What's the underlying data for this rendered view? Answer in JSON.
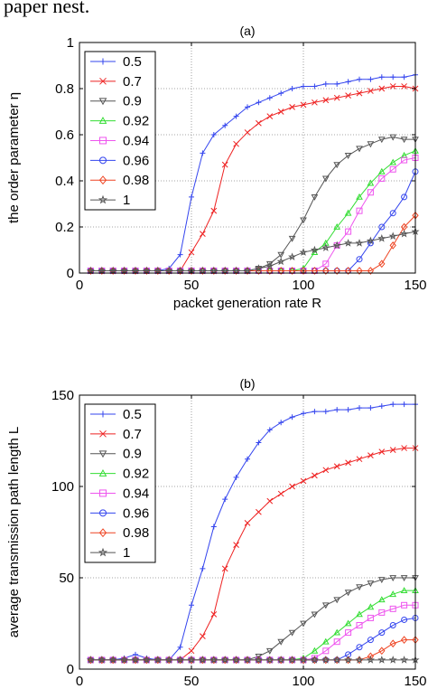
{
  "caption_fragment": "paper nest.",
  "chart_data": [
    {
      "type": "line",
      "panel_label": "(a)",
      "xlabel": "packet generation rate R",
      "ylabel": "the order parameter η",
      "xlim": [
        0,
        150
      ],
      "ylim": [
        0,
        1
      ],
      "xticks": [
        0,
        50,
        100,
        150
      ],
      "yticks": [
        0,
        0.2,
        0.4,
        0.6,
        0.8,
        1
      ],
      "ytick_labels": [
        "0",
        "0.2",
        "0.4",
        "0.6",
        "0.8",
        "1"
      ],
      "grid": true,
      "legend_position": "top-left",
      "x": [
        5,
        10,
        15,
        20,
        25,
        30,
        35,
        40,
        45,
        50,
        55,
        60,
        65,
        70,
        75,
        80,
        85,
        90,
        95,
        100,
        105,
        110,
        115,
        120,
        125,
        130,
        135,
        140,
        145,
        150
      ],
      "series": [
        {
          "name": "0.5",
          "color": "#3344ee",
          "marker": "+",
          "values": [
            0.01,
            0.01,
            0.01,
            0.01,
            0.01,
            0.01,
            0.01,
            0.02,
            0.08,
            0.33,
            0.52,
            0.6,
            0.64,
            0.68,
            0.72,
            0.74,
            0.76,
            0.78,
            0.8,
            0.81,
            0.81,
            0.82,
            0.82,
            0.83,
            0.84,
            0.84,
            0.85,
            0.85,
            0.85,
            0.86
          ]
        },
        {
          "name": "0.7",
          "color": "#ee2222",
          "marker": "x",
          "values": [
            0.01,
            0.01,
            0.01,
            0.01,
            0.01,
            0.01,
            0.01,
            0.01,
            0.01,
            0.09,
            0.17,
            0.27,
            0.47,
            0.56,
            0.61,
            0.65,
            0.68,
            0.7,
            0.72,
            0.73,
            0.74,
            0.75,
            0.76,
            0.77,
            0.78,
            0.79,
            0.8,
            0.81,
            0.81,
            0.8
          ]
        },
        {
          "name": "0.9",
          "color": "#555555",
          "marker": "triangle-down",
          "values": [
            0.01,
            0.01,
            0.01,
            0.01,
            0.01,
            0.01,
            0.01,
            0.01,
            0.01,
            0.01,
            0.01,
            0.01,
            0.01,
            0.01,
            0.01,
            0.02,
            0.04,
            0.08,
            0.15,
            0.23,
            0.33,
            0.41,
            0.47,
            0.51,
            0.54,
            0.56,
            0.58,
            0.59,
            0.58,
            0.58
          ]
        },
        {
          "name": "0.92",
          "color": "#33dd33",
          "marker": "triangle-up",
          "values": [
            0.01,
            0.01,
            0.01,
            0.01,
            0.01,
            0.01,
            0.01,
            0.01,
            0.01,
            0.01,
            0.01,
            0.01,
            0.01,
            0.01,
            0.01,
            0.01,
            0.01,
            0.01,
            0.01,
            0.02,
            0.09,
            0.13,
            0.2,
            0.26,
            0.33,
            0.39,
            0.44,
            0.48,
            0.51,
            0.53
          ]
        },
        {
          "name": "0.94",
          "color": "#ee55ee",
          "marker": "square",
          "values": [
            0.01,
            0.01,
            0.01,
            0.01,
            0.01,
            0.01,
            0.01,
            0.01,
            0.01,
            0.01,
            0.01,
            0.01,
            0.01,
            0.01,
            0.01,
            0.01,
            0.01,
            0.01,
            0.01,
            0.01,
            0.01,
            0.04,
            0.12,
            0.18,
            0.27,
            0.35,
            0.41,
            0.45,
            0.49,
            0.5
          ]
        },
        {
          "name": "0.96",
          "color": "#3344ee",
          "marker": "circle",
          "values": [
            0.01,
            0.01,
            0.01,
            0.01,
            0.01,
            0.01,
            0.01,
            0.01,
            0.01,
            0.01,
            0.01,
            0.01,
            0.01,
            0.01,
            0.01,
            0.01,
            0.01,
            0.01,
            0.01,
            0.01,
            0.01,
            0.01,
            0.01,
            0.01,
            0.06,
            0.13,
            0.2,
            0.26,
            0.33,
            0.44
          ]
        },
        {
          "name": "0.98",
          "color": "#ee4422",
          "marker": "diamond",
          "values": [
            0.01,
            0.01,
            0.01,
            0.01,
            0.01,
            0.01,
            0.01,
            0.01,
            0.01,
            0.01,
            0.01,
            0.01,
            0.01,
            0.01,
            0.01,
            0.01,
            0.01,
            0.01,
            0.01,
            0.01,
            0.01,
            0.01,
            0.01,
            0.01,
            0.01,
            0.01,
            0.04,
            0.12,
            0.2,
            0.25
          ]
        },
        {
          "name": "1",
          "color": "#555555",
          "marker": "star",
          "values": [
            0.01,
            0.01,
            0.01,
            0.01,
            0.01,
            0.01,
            0.01,
            0.01,
            0.01,
            0.01,
            0.01,
            0.01,
            0.01,
            0.01,
            0.01,
            0.02,
            0.03,
            0.05,
            0.07,
            0.09,
            0.1,
            0.11,
            0.12,
            0.13,
            0.13,
            0.14,
            0.15,
            0.16,
            0.17,
            0.18
          ]
        }
      ]
    },
    {
      "type": "line",
      "panel_label": "(b)",
      "xlabel": "packet generation rate R",
      "ylabel": "average transmission path length L",
      "xlim": [
        0,
        150
      ],
      "ylim": [
        0,
        150
      ],
      "xticks": [
        0,
        50,
        100,
        150
      ],
      "yticks": [
        0,
        50,
        100,
        150
      ],
      "ytick_labels": [
        "0",
        "50",
        "100",
        "150"
      ],
      "grid": true,
      "legend_position": "top-left",
      "x": [
        5,
        10,
        15,
        20,
        25,
        30,
        35,
        40,
        45,
        50,
        55,
        60,
        65,
        70,
        75,
        80,
        85,
        90,
        95,
        100,
        105,
        110,
        115,
        120,
        125,
        130,
        135,
        140,
        145,
        150
      ],
      "series": [
        {
          "name": "0.5",
          "color": "#3344ee",
          "marker": "+",
          "values": [
            5,
            5,
            5,
            6,
            8,
            6,
            5,
            5,
            12,
            35,
            55,
            78,
            93,
            105,
            115,
            124,
            131,
            135,
            138,
            140,
            141,
            141,
            142,
            142,
            143,
            143,
            144,
            145,
            145,
            145
          ]
        },
        {
          "name": "0.7",
          "color": "#ee2222",
          "marker": "x",
          "values": [
            5,
            5,
            5,
            5,
            5,
            5,
            5,
            5,
            5,
            10,
            18,
            30,
            55,
            68,
            80,
            86,
            92,
            96,
            100,
            103,
            106,
            109,
            111,
            113,
            115,
            117,
            119,
            120,
            121,
            121
          ]
        },
        {
          "name": "0.9",
          "color": "#555555",
          "marker": "triangle-down",
          "values": [
            5,
            5,
            5,
            5,
            5,
            5,
            5,
            5,
            5,
            5,
            5,
            5,
            5,
            5,
            5,
            7,
            10,
            15,
            20,
            25,
            30,
            35,
            38,
            42,
            45,
            47,
            49,
            50,
            50,
            50
          ]
        },
        {
          "name": "0.92",
          "color": "#33dd33",
          "marker": "triangle-up",
          "values": [
            5,
            5,
            5,
            5,
            5,
            5,
            5,
            5,
            5,
            5,
            5,
            5,
            5,
            5,
            5,
            5,
            5,
            5,
            5,
            6,
            10,
            15,
            20,
            25,
            30,
            34,
            38,
            41,
            43,
            43
          ]
        },
        {
          "name": "0.94",
          "color": "#ee55ee",
          "marker": "square",
          "values": [
            5,
            5,
            5,
            5,
            5,
            5,
            5,
            5,
            5,
            5,
            5,
            5,
            5,
            5,
            5,
            5,
            5,
            5,
            5,
            5,
            6,
            10,
            15,
            20,
            24,
            28,
            31,
            33,
            35,
            35
          ]
        },
        {
          "name": "0.96",
          "color": "#3344ee",
          "marker": "circle",
          "values": [
            5,
            5,
            5,
            5,
            5,
            5,
            5,
            5,
            5,
            5,
            5,
            5,
            5,
            5,
            5,
            5,
            5,
            5,
            5,
            5,
            5,
            5,
            5,
            8,
            12,
            16,
            20,
            24,
            27,
            28
          ]
        },
        {
          "name": "0.98",
          "color": "#ee4422",
          "marker": "diamond",
          "values": [
            5,
            5,
            5,
            5,
            5,
            5,
            5,
            5,
            5,
            5,
            5,
            5,
            5,
            5,
            5,
            5,
            5,
            5,
            5,
            5,
            5,
            5,
            5,
            5,
            5,
            7,
            10,
            14,
            16,
            16
          ]
        },
        {
          "name": "1",
          "color": "#555555",
          "marker": "star",
          "values": [
            5,
            5,
            5,
            5,
            5,
            5,
            5,
            5,
            5,
            5,
            5,
            5,
            5,
            5,
            5,
            5,
            5,
            5,
            5,
            5,
            5,
            5,
            5,
            5,
            5,
            5,
            5,
            5,
            5,
            5
          ]
        }
      ]
    }
  ]
}
